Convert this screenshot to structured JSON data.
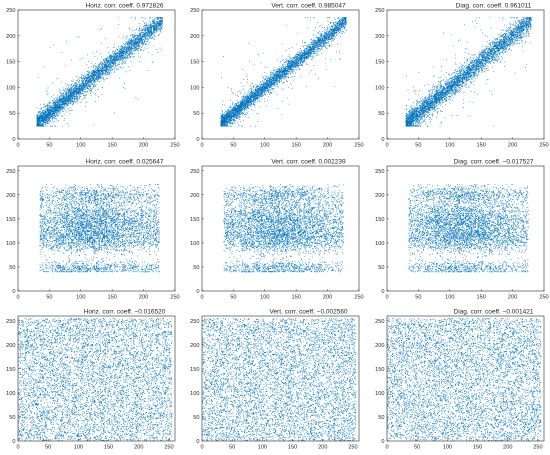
{
  "figure": {
    "accent_color": "#0072bd",
    "axis_color": "#262626"
  },
  "chart_data": [
    {
      "type": "scatter",
      "title": "Horiz. corr. coeff. 0.972826",
      "coefficient": 0.972826,
      "pattern": "correlated",
      "xlim": [
        0,
        250
      ],
      "ylim": [
        0,
        250
      ],
      "xticks": [
        0,
        50,
        100,
        150,
        200,
        250
      ],
      "yticks": [
        0,
        50,
        100,
        150,
        200,
        250
      ],
      "point_range": [
        30,
        230
      ]
    },
    {
      "type": "scatter",
      "title": "Vert. corr. coeff. 0.985047",
      "coefficient": 0.985047,
      "pattern": "correlated",
      "xlim": [
        0,
        250
      ],
      "ylim": [
        0,
        250
      ],
      "xticks": [
        0,
        50,
        100,
        150,
        200,
        250
      ],
      "yticks": [
        0,
        50,
        100,
        150,
        200,
        250
      ],
      "point_range": [
        30,
        230
      ]
    },
    {
      "type": "scatter",
      "title": "Diag. corr. coeff. 0.961011",
      "coefficient": 0.961011,
      "pattern": "correlated",
      "xlim": [
        0,
        250
      ],
      "ylim": [
        0,
        250
      ],
      "xticks": [
        0,
        50,
        100,
        150,
        200,
        250
      ],
      "yticks": [
        0,
        50,
        100,
        150,
        200,
        250
      ],
      "point_range": [
        30,
        230
      ]
    },
    {
      "type": "scatter",
      "title": "Horiz. corr. coeff. 0.025647",
      "coefficient": 0.025647,
      "pattern": "banded",
      "xlim": [
        0,
        250
      ],
      "ylim": [
        0,
        260
      ],
      "xticks": [
        0,
        50,
        100,
        150,
        200,
        250
      ],
      "yticks": [
        0,
        50,
        100,
        150,
        200,
        250
      ],
      "point_range": [
        35,
        225
      ]
    },
    {
      "type": "scatter",
      "title": "Vert. corr. coeff. 0.002239",
      "coefficient": 0.002239,
      "pattern": "banded",
      "xlim": [
        0,
        250
      ],
      "ylim": [
        0,
        260
      ],
      "xticks": [
        0,
        50,
        100,
        150,
        200,
        250
      ],
      "yticks": [
        0,
        50,
        100,
        150,
        200,
        250
      ],
      "point_range": [
        35,
        225
      ]
    },
    {
      "type": "scatter",
      "title": "Diag. corr. coeff. −0.017527",
      "coefficient": -0.017527,
      "pattern": "banded",
      "xlim": [
        0,
        250
      ],
      "ylim": [
        0,
        260
      ],
      "xticks": [
        0,
        50,
        100,
        150,
        200,
        250
      ],
      "yticks": [
        0,
        50,
        100,
        150,
        200,
        250
      ],
      "point_range": [
        35,
        225
      ]
    },
    {
      "type": "scatter",
      "title": "Horiz. corr. coeff. −0.016520",
      "coefficient": -0.01652,
      "pattern": "uniform",
      "xlim": [
        0,
        260
      ],
      "ylim": [
        0,
        260
      ],
      "xticks": [
        0,
        50,
        100,
        150,
        200,
        250
      ],
      "yticks": [
        0,
        50,
        100,
        150,
        200,
        250
      ],
      "point_range": [
        0,
        255
      ]
    },
    {
      "type": "scatter",
      "title": "Vert. corr. coeff. −0.002560",
      "coefficient": -0.00256,
      "pattern": "uniform",
      "xlim": [
        0,
        260
      ],
      "ylim": [
        0,
        260
      ],
      "xticks": [
        0,
        50,
        100,
        150,
        200,
        250
      ],
      "yticks": [
        0,
        50,
        100,
        150,
        200,
        250
      ],
      "point_range": [
        0,
        255
      ]
    },
    {
      "type": "scatter",
      "title": "Diag. corr. coeff. −0.001421",
      "coefficient": -0.001421,
      "pattern": "uniform",
      "xlim": [
        0,
        260
      ],
      "ylim": [
        0,
        260
      ],
      "xticks": [
        0,
        50,
        100,
        150,
        200,
        250
      ],
      "yticks": [
        0,
        50,
        100,
        150,
        200,
        250
      ],
      "point_range": [
        0,
        255
      ]
    }
  ]
}
